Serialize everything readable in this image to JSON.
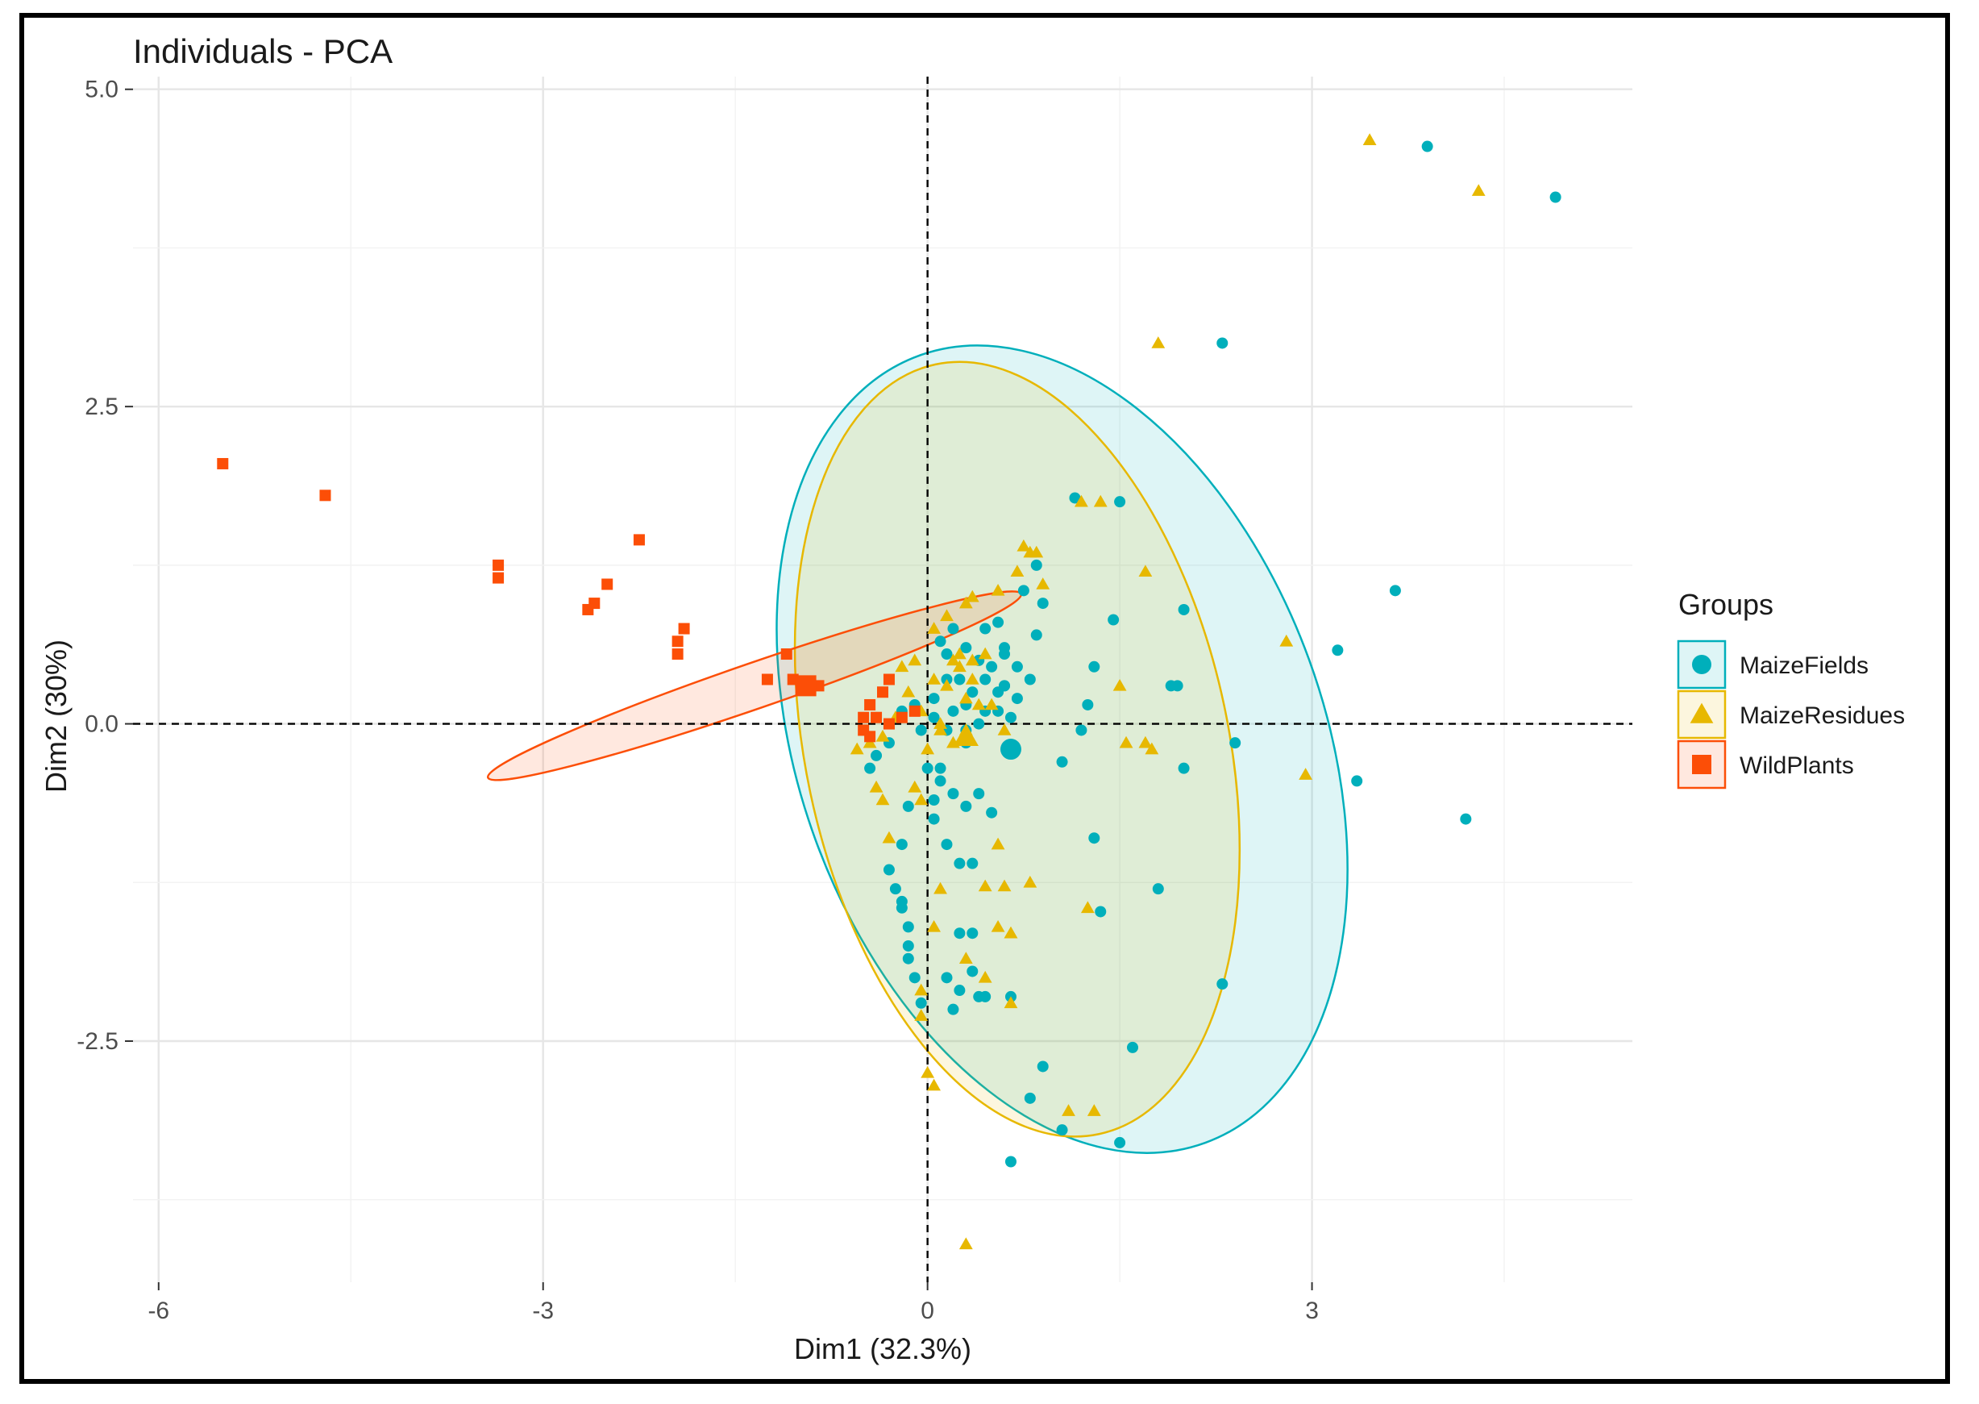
{
  "chart_data": {
    "type": "scatter",
    "title": "Individuals - PCA",
    "xlabel": "Dim1 (32.3%)",
    "ylabel": "Dim2 (30%)",
    "xlim": [
      -6.2,
      5.5
    ],
    "ylim": [
      -4.4,
      5.1
    ],
    "xticks": [
      -6,
      -3,
      0,
      3
    ],
    "xtick_labels": [
      "-6",
      "-3",
      "0",
      "3"
    ],
    "yticks": [
      -2.5,
      0.0,
      2.5,
      5.0
    ],
    "ytick_labels": [
      "-2.5",
      "0.0",
      "2.5",
      "5.0"
    ],
    "grid": true,
    "reference_lines": [
      "x=0",
      "y=0"
    ],
    "legend": {
      "title": "Groups",
      "position": "right"
    },
    "series": [
      {
        "name": "MaizeFields",
        "color": "#00AFBB",
        "marker": "circle",
        "centroid": [
          0.65,
          -0.2
        ],
        "ellipse": {
          "center": [
            1.05,
            -0.2
          ],
          "rx": 2.05,
          "ry": 3.3,
          "rotation_deg": -20
        },
        "points": [
          [
            3.9,
            4.55
          ],
          [
            4.9,
            4.15
          ],
          [
            2.3,
            3.0
          ],
          [
            1.5,
            1.75
          ],
          [
            1.15,
            1.78
          ],
          [
            3.65,
            1.05
          ],
          [
            2.0,
            0.9
          ],
          [
            1.45,
            0.82
          ],
          [
            3.2,
            0.58
          ],
          [
            1.3,
            0.45
          ],
          [
            1.25,
            0.15
          ],
          [
            2.4,
            -0.15
          ],
          [
            3.35,
            -0.45
          ],
          [
            4.2,
            -0.75
          ],
          [
            1.9,
            0.3
          ],
          [
            1.95,
            0.3
          ],
          [
            2.0,
            -0.35
          ],
          [
            1.2,
            -0.05
          ],
          [
            1.05,
            -0.3
          ],
          [
            1.3,
            -0.9
          ],
          [
            1.8,
            -1.3
          ],
          [
            1.35,
            -1.48
          ],
          [
            2.3,
            -2.05
          ],
          [
            1.6,
            -2.55
          ],
          [
            0.9,
            -2.7
          ],
          [
            0.8,
            -2.95
          ],
          [
            1.05,
            -3.2
          ],
          [
            1.5,
            -3.3
          ],
          [
            0.65,
            -3.45
          ],
          [
            0.85,
            0.7
          ],
          [
            0.9,
            0.95
          ],
          [
            0.75,
            1.05
          ],
          [
            0.85,
            1.25
          ],
          [
            0.8,
            0.35
          ],
          [
            0.6,
            0.3
          ],
          [
            0.6,
            0.55
          ],
          [
            0.5,
            0.45
          ],
          [
            0.7,
            0.45
          ],
          [
            0.45,
            0.1
          ],
          [
            0.55,
            0.1
          ],
          [
            0.4,
            0.0
          ],
          [
            0.3,
            -0.15
          ],
          [
            0.25,
            0.35
          ],
          [
            0.15,
            0.35
          ],
          [
            0.05,
            0.05
          ],
          [
            -0.05,
            -0.05
          ],
          [
            -0.2,
            0.1
          ],
          [
            -0.3,
            -0.15
          ],
          [
            -0.4,
            -0.25
          ],
          [
            -0.45,
            -0.35
          ],
          [
            0.1,
            -0.45
          ],
          [
            0.05,
            -0.6
          ],
          [
            0.2,
            -0.55
          ],
          [
            0.3,
            -0.65
          ],
          [
            0.4,
            -0.55
          ],
          [
            0.5,
            -0.7
          ],
          [
            -0.15,
            -0.65
          ],
          [
            -0.2,
            -0.95
          ],
          [
            0.15,
            -0.95
          ],
          [
            0.25,
            -1.1
          ],
          [
            0.35,
            -1.1
          ],
          [
            -0.3,
            -1.15
          ],
          [
            -0.25,
            -1.3
          ],
          [
            -0.2,
            -1.4
          ],
          [
            -0.2,
            -1.45
          ],
          [
            -0.15,
            -1.6
          ],
          [
            -0.15,
            -1.75
          ],
          [
            -0.15,
            -1.85
          ],
          [
            -0.1,
            -2.0
          ],
          [
            0.25,
            -1.65
          ],
          [
            0.35,
            -1.65
          ],
          [
            0.35,
            -1.95
          ],
          [
            0.15,
            -2.0
          ],
          [
            0.25,
            -2.1
          ],
          [
            0.4,
            -2.15
          ],
          [
            0.45,
            -2.15
          ],
          [
            0.65,
            -2.15
          ],
          [
            -0.05,
            -2.2
          ],
          [
            0.2,
            -2.25
          ],
          [
            0.1,
            0.65
          ],
          [
            0.2,
            0.75
          ],
          [
            0.3,
            0.6
          ],
          [
            0.15,
            0.55
          ],
          [
            0.4,
            0.5
          ],
          [
            0.45,
            0.35
          ],
          [
            0.55,
            0.25
          ],
          [
            0.65,
            0.05
          ],
          [
            0.35,
            0.25
          ],
          [
            0.45,
            0.75
          ],
          [
            0.55,
            0.8
          ],
          [
            0.6,
            0.6
          ],
          [
            0.3,
            0.15
          ],
          [
            0.05,
            0.2
          ],
          [
            -0.1,
            0.15
          ],
          [
            0.15,
            -0.05
          ],
          [
            0.2,
            0.1
          ],
          [
            0.3,
            -0.05
          ],
          [
            0.6,
            0.3
          ],
          [
            0.7,
            0.2
          ],
          [
            0.0,
            -0.35
          ],
          [
            0.05,
            -0.75
          ],
          [
            0.1,
            -0.35
          ]
        ]
      },
      {
        "name": "MaizeResidues",
        "color": "#E7B800",
        "marker": "triangle",
        "centroid": [
          0.3,
          -0.1
        ],
        "ellipse": {
          "center": [
            0.7,
            -0.2
          ],
          "rx": 1.65,
          "ry": 3.1,
          "rotation_deg": -12
        },
        "points": [
          [
            3.45,
            4.6
          ],
          [
            4.3,
            4.2
          ],
          [
            1.8,
            3.0
          ],
          [
            1.2,
            1.75
          ],
          [
            1.35,
            1.75
          ],
          [
            1.7,
            1.2
          ],
          [
            2.8,
            0.65
          ],
          [
            2.95,
            -0.4
          ],
          [
            1.7,
            -0.15
          ],
          [
            1.55,
            -0.15
          ],
          [
            1.75,
            -0.2
          ],
          [
            1.5,
            0.3
          ],
          [
            1.25,
            -1.45
          ],
          [
            0.8,
            -1.25
          ],
          [
            0.6,
            -1.28
          ],
          [
            0.65,
            -1.65
          ],
          [
            1.3,
            -3.05
          ],
          [
            1.1,
            -3.05
          ],
          [
            0.3,
            -4.1
          ],
          [
            0.8,
            1.35
          ],
          [
            0.75,
            1.4
          ],
          [
            0.85,
            1.35
          ],
          [
            0.9,
            1.1
          ],
          [
            0.7,
            1.2
          ],
          [
            0.55,
            1.05
          ],
          [
            0.35,
            1.0
          ],
          [
            0.3,
            0.95
          ],
          [
            0.15,
            0.85
          ],
          [
            0.05,
            0.75
          ],
          [
            0.2,
            0.5
          ],
          [
            0.25,
            0.45
          ],
          [
            0.35,
            0.5
          ],
          [
            0.45,
            0.55
          ],
          [
            0.5,
            0.15
          ],
          [
            0.3,
            -0.05
          ],
          [
            0.2,
            -0.15
          ],
          [
            0.1,
            -0.05
          ],
          [
            -0.05,
            0.1
          ],
          [
            -0.15,
            0.25
          ],
          [
            -0.2,
            0.45
          ],
          [
            -0.1,
            0.5
          ],
          [
            -0.25,
            0.05
          ],
          [
            -0.35,
            -0.1
          ],
          [
            -0.45,
            -0.15
          ],
          [
            -0.55,
            -0.2
          ],
          [
            -0.4,
            -0.5
          ],
          [
            -0.35,
            -0.6
          ],
          [
            -0.1,
            -0.5
          ],
          [
            -0.05,
            -0.6
          ],
          [
            -0.3,
            -0.9
          ],
          [
            0.1,
            -1.3
          ],
          [
            0.05,
            -1.6
          ],
          [
            0.3,
            -1.85
          ],
          [
            0.45,
            -2.0
          ],
          [
            0.65,
            -2.2
          ],
          [
            -0.05,
            -2.1
          ],
          [
            -0.05,
            -2.3
          ],
          [
            0.0,
            -2.75
          ],
          [
            0.05,
            -2.85
          ],
          [
            0.65,
            -1.65
          ],
          [
            0.55,
            -0.95
          ],
          [
            0.3,
            0.2
          ],
          [
            0.4,
            0.15
          ],
          [
            0.6,
            -0.05
          ],
          [
            0.15,
            0.3
          ],
          [
            0.05,
            0.35
          ],
          [
            0.35,
            0.35
          ],
          [
            0.25,
            0.55
          ],
          [
            0.1,
            0.0
          ],
          [
            0.0,
            -0.2
          ],
          [
            0.45,
            -1.28
          ],
          [
            0.55,
            -1.6
          ]
        ]
      },
      {
        "name": "WildPlants",
        "color": "#FC4E07",
        "marker": "square",
        "centroid": [
          -0.95,
          0.3
        ],
        "ellipse": {
          "center": [
            -1.35,
            0.3
          ],
          "rx": 2.2,
          "ry": 0.18,
          "rotation_deg": -19
        },
        "points": [
          [
            -5.5,
            2.05
          ],
          [
            -4.7,
            1.8
          ],
          [
            -3.35,
            1.25
          ],
          [
            -3.35,
            1.15
          ],
          [
            -2.6,
            0.95
          ],
          [
            -2.65,
            0.9
          ],
          [
            -2.5,
            1.1
          ],
          [
            -2.25,
            1.45
          ],
          [
            -1.9,
            0.75
          ],
          [
            -1.95,
            0.65
          ],
          [
            -1.95,
            0.55
          ],
          [
            -1.1,
            0.55
          ],
          [
            -1.25,
            0.35
          ],
          [
            -1.05,
            0.35
          ],
          [
            -0.95,
            0.3
          ],
          [
            -0.85,
            0.3
          ],
          [
            -0.3,
            0.35
          ],
          [
            -0.35,
            0.25
          ],
          [
            -0.45,
            0.15
          ],
          [
            -0.5,
            0.05
          ],
          [
            -0.4,
            0.05
          ],
          [
            -0.3,
            0.0
          ],
          [
            -0.2,
            0.05
          ],
          [
            -0.1,
            0.1
          ],
          [
            -0.5,
            -0.05
          ],
          [
            -0.45,
            -0.1
          ]
        ]
      }
    ]
  }
}
